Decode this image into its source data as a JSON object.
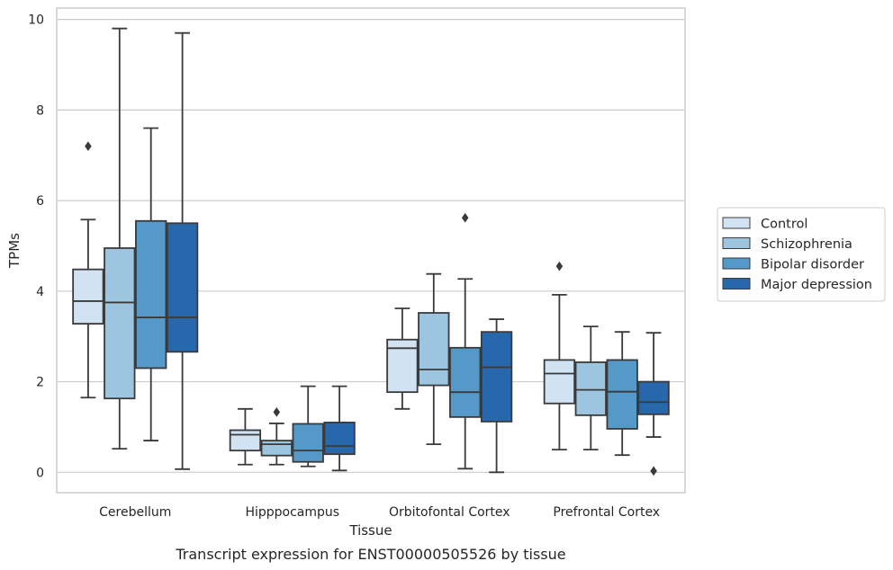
{
  "chart_data": {
    "type": "boxplot",
    "caption": "Transcript expression for ENST00000505526 by tissue",
    "xlabel": "Tissue",
    "ylabel": "TPMs",
    "ylim": [
      -0.45,
      10.25
    ],
    "yticks": [
      0,
      2,
      4,
      6,
      8,
      10
    ],
    "grid": true,
    "legend_position": "right",
    "categories": [
      "Cerebellum",
      "Hipppocampus",
      "Orbitofontal Cortex",
      "Prefrontal Cortex"
    ],
    "series": [
      {
        "name": "Control",
        "color": "#d1e2f2",
        "boxes": [
          {
            "low": 1.65,
            "q1": 3.28,
            "median": 3.78,
            "q3": 4.48,
            "high": 5.58,
            "outliers": [
              7.2
            ]
          },
          {
            "low": 0.17,
            "q1": 0.48,
            "median": 0.83,
            "q3": 0.93,
            "high": 1.4,
            "outliers": []
          },
          {
            "low": 1.4,
            "q1": 1.77,
            "median": 2.74,
            "q3": 2.93,
            "high": 3.62,
            "outliers": []
          },
          {
            "low": 0.5,
            "q1": 1.52,
            "median": 2.18,
            "q3": 2.48,
            "high": 3.92,
            "outliers": [
              4.55
            ]
          }
        ]
      },
      {
        "name": "Schizophrenia",
        "color": "#9dc5df",
        "boxes": [
          {
            "low": 0.52,
            "q1": 1.63,
            "median": 3.75,
            "q3": 4.95,
            "high": 9.8,
            "outliers": []
          },
          {
            "low": 0.17,
            "q1": 0.37,
            "median": 0.62,
            "q3": 0.7,
            "high": 1.08,
            "outliers": [
              1.33
            ]
          },
          {
            "low": 0.62,
            "q1": 1.92,
            "median": 2.27,
            "q3": 3.52,
            "high": 4.38,
            "outliers": []
          },
          {
            "low": 0.5,
            "q1": 1.26,
            "median": 1.82,
            "q3": 2.43,
            "high": 3.22,
            "outliers": []
          }
        ]
      },
      {
        "name": "Bipolar disorder",
        "color": "#5499c7",
        "boxes": [
          {
            "low": 0.7,
            "q1": 2.3,
            "median": 3.42,
            "q3": 5.55,
            "high": 7.6,
            "outliers": []
          },
          {
            "low": 0.13,
            "q1": 0.23,
            "median": 0.48,
            "q3": 1.07,
            "high": 1.9,
            "outliers": []
          },
          {
            "low": 0.08,
            "q1": 1.22,
            "median": 1.77,
            "q3": 2.75,
            "high": 4.27,
            "outliers": [
              5.62
            ]
          },
          {
            "low": 0.38,
            "q1": 0.96,
            "median": 1.78,
            "q3": 2.48,
            "high": 3.1,
            "outliers": []
          }
        ]
      },
      {
        "name": "Major depression",
        "color": "#2767ab",
        "boxes": [
          {
            "low": 0.07,
            "q1": 2.66,
            "median": 3.42,
            "q3": 5.5,
            "high": 9.7,
            "outliers": []
          },
          {
            "low": 0.04,
            "q1": 0.4,
            "median": 0.58,
            "q3": 1.1,
            "high": 1.9,
            "outliers": []
          },
          {
            "low": 0.0,
            "q1": 1.12,
            "median": 2.32,
            "q3": 3.1,
            "high": 3.38,
            "outliers": []
          },
          {
            "low": 0.78,
            "q1": 1.28,
            "median": 1.55,
            "q3": 2.0,
            "high": 3.08,
            "outliers": [
              0.03
            ]
          }
        ]
      }
    ]
  }
}
